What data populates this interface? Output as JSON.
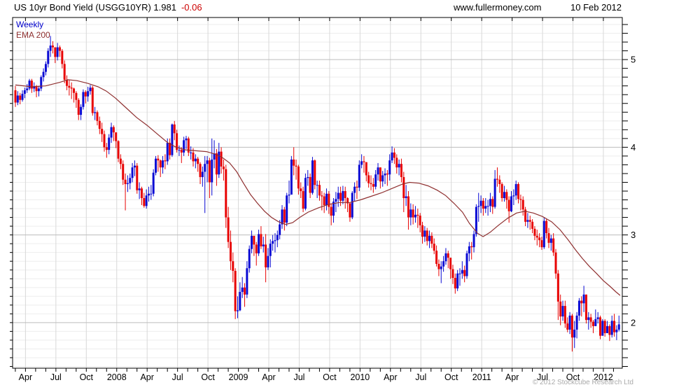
{
  "header": {
    "title": "US 10yr Bond Yield (USGG10YR) 1.981",
    "change": "-0.06",
    "website": "www.fullermoney.com",
    "date": "10 Feb 2012"
  },
  "legend": {
    "timeframe": "Weekly",
    "overlay": "EMA 200"
  },
  "footer": {
    "copyright": "© 2012 Stockcube Research Ltd"
  },
  "colors": {
    "up": "#0b0bd4",
    "down": "#e80404",
    "ema": "#8f3030",
    "change_text": "#cc0000",
    "weekly_text": "#0000cc",
    "grid_minor": "#ededed",
    "grid_major": "#bdbdbd",
    "grid_vert": "#d8d8d8",
    "axis": "#000000",
    "label_text": "#000000",
    "copyright_text": "#aaaaaa"
  },
  "chart_data": {
    "type": "candlestick",
    "title": "US 10yr Bond Yield (USGG10YR)",
    "frequency_label": "Weekly",
    "overlay_label": "EMA 200",
    "last_price": 1.981,
    "change": -0.06,
    "ylim": [
      1.48,
      5.48
    ],
    "y_ticks": [
      5,
      4,
      3,
      2
    ],
    "y_minor_step": 0.1,
    "x_quarter_labels": [
      "Apr",
      "Jul",
      "Oct",
      "2008",
      "Apr",
      "Jul",
      "Oct",
      "2009",
      "Apr",
      "Jul",
      "Oct",
      "2010",
      "Apr",
      "Jul",
      "Oct",
      "2011",
      "Apr",
      "Jul",
      "Oct",
      "2012"
    ],
    "legend_position": "top-left",
    "grid": true,
    "first_open": 4.65,
    "candles_hlc": [
      [
        4.7,
        4.46,
        4.51
      ],
      [
        4.64,
        4.48,
        4.59
      ],
      [
        4.62,
        4.49,
        4.54
      ],
      [
        4.65,
        4.52,
        4.61
      ],
      [
        4.68,
        4.56,
        4.65
      ],
      [
        4.72,
        4.62,
        4.67
      ],
      [
        4.78,
        4.65,
        4.76
      ],
      [
        4.78,
        4.62,
        4.67
      ],
      [
        4.74,
        4.63,
        4.69
      ],
      [
        4.71,
        4.57,
        4.64
      ],
      [
        4.7,
        4.58,
        4.67
      ],
      [
        4.82,
        4.64,
        4.8
      ],
      [
        4.9,
        4.75,
        4.86
      ],
      [
        4.98,
        4.82,
        4.95
      ],
      [
        5.13,
        4.91,
        5.1
      ],
      [
        5.27,
        5.03,
        5.16
      ],
      [
        5.21,
        5.07,
        5.14
      ],
      [
        5.14,
        4.96,
        5.03
      ],
      [
        5.19,
        4.99,
        5.14
      ],
      [
        5.16,
        5.03,
        5.1
      ],
      [
        5.12,
        4.9,
        4.95
      ],
      [
        4.99,
        4.73,
        4.77
      ],
      [
        4.82,
        4.65,
        4.7
      ],
      [
        4.77,
        4.59,
        4.68
      ],
      [
        4.74,
        4.55,
        4.67
      ],
      [
        4.68,
        4.51,
        4.62
      ],
      [
        4.64,
        4.45,
        4.54
      ],
      [
        4.56,
        4.31,
        4.37
      ],
      [
        4.49,
        4.31,
        4.46
      ],
      [
        4.66,
        4.43,
        4.63
      ],
      [
        4.65,
        4.5,
        4.58
      ],
      [
        4.69,
        4.52,
        4.64
      ],
      [
        4.71,
        4.6,
        4.68
      ],
      [
        4.7,
        4.36,
        4.39
      ],
      [
        4.46,
        4.31,
        4.4
      ],
      [
        4.42,
        4.25,
        4.3
      ],
      [
        4.35,
        4.15,
        4.21
      ],
      [
        4.28,
        4.06,
        4.15
      ],
      [
        4.19,
        3.95,
        4.0
      ],
      [
        4.05,
        3.88,
        3.97
      ],
      [
        4.15,
        3.92,
        4.11
      ],
      [
        4.28,
        4.05,
        4.23
      ],
      [
        4.25,
        4.07,
        4.17
      ],
      [
        4.15,
        3.99,
        4.07
      ],
      [
        4.08,
        3.83,
        3.87
      ],
      [
        3.92,
        3.75,
        3.81
      ],
      [
        3.85,
        3.57,
        3.63
      ],
      [
        3.7,
        3.28,
        3.58
      ],
      [
        3.68,
        3.49,
        3.59
      ],
      [
        3.7,
        3.52,
        3.65
      ],
      [
        3.82,
        3.6,
        3.77
      ],
      [
        3.85,
        3.67,
        3.79
      ],
      [
        3.82,
        3.47,
        3.51
      ],
      [
        3.6,
        3.41,
        3.53
      ],
      [
        3.55,
        3.34,
        3.42
      ],
      [
        3.48,
        3.31,
        3.33
      ],
      [
        3.52,
        3.3,
        3.45
      ],
      [
        3.55,
        3.38,
        3.47
      ],
      [
        3.57,
        3.4,
        3.47
      ],
      [
        3.75,
        3.44,
        3.71
      ],
      [
        3.9,
        3.68,
        3.87
      ],
      [
        3.91,
        3.72,
        3.85
      ],
      [
        3.86,
        3.66,
        3.77
      ],
      [
        3.9,
        3.7,
        3.85
      ],
      [
        3.92,
        3.75,
        3.84
      ],
      [
        4.1,
        3.8,
        4.05
      ],
      [
        4.1,
        3.86,
        3.91
      ],
      [
        4.27,
        3.89,
        4.26
      ],
      [
        4.3,
        4.08,
        4.16
      ],
      [
        4.2,
        3.94,
        3.97
      ],
      [
        4.02,
        3.9,
        3.97
      ],
      [
        4.0,
        3.82,
        3.94
      ],
      [
        4.12,
        3.9,
        4.08
      ],
      [
        4.13,
        3.98,
        4.1
      ],
      [
        4.12,
        3.9,
        3.94
      ],
      [
        4.01,
        3.86,
        3.94
      ],
      [
        3.99,
        3.78,
        3.84
      ],
      [
        3.92,
        3.76,
        3.87
      ],
      [
        3.89,
        3.72,
        3.81
      ],
      [
        3.83,
        3.58,
        3.66
      ],
      [
        3.78,
        3.55,
        3.72
      ],
      [
        3.9,
        3.25,
        3.81
      ],
      [
        3.9,
        3.6,
        3.85
      ],
      [
        3.88,
        3.42,
        3.6
      ],
      [
        4.1,
        3.45,
        3.86
      ],
      [
        4.08,
        3.76,
        3.93
      ],
      [
        3.98,
        3.56,
        3.69
      ],
      [
        4.05,
        3.65,
        3.95
      ],
      [
        4.0,
        3.7,
        3.78
      ],
      [
        3.86,
        3.62,
        3.75
      ],
      [
        3.8,
        3.08,
        3.2
      ],
      [
        3.32,
        2.85,
        2.92
      ],
      [
        3.05,
        2.6,
        2.7
      ],
      [
        2.8,
        2.46,
        2.59
      ],
      [
        2.62,
        2.04,
        2.13
      ],
      [
        2.3,
        2.05,
        2.14
      ],
      [
        2.46,
        2.13,
        2.35
      ],
      [
        2.52,
        2.28,
        2.4
      ],
      [
        2.45,
        2.18,
        2.32
      ],
      [
        2.7,
        2.28,
        2.62
      ],
      [
        2.88,
        2.57,
        2.84
      ],
      [
        3.05,
        2.79,
        2.99
      ],
      [
        2.98,
        2.76,
        2.89
      ],
      [
        2.92,
        2.65,
        2.79
      ],
      [
        3.06,
        2.76,
        3.01
      ],
      [
        3.1,
        2.84,
        2.87
      ],
      [
        2.98,
        2.8,
        2.89
      ],
      [
        3.01,
        2.46,
        2.63
      ],
      [
        2.85,
        2.6,
        2.76
      ],
      [
        2.95,
        2.63,
        2.9
      ],
      [
        3.0,
        2.82,
        2.93
      ],
      [
        3.02,
        2.8,
        2.94
      ],
      [
        3.05,
        2.86,
        3.0
      ],
      [
        3.17,
        2.95,
        3.12
      ],
      [
        3.34,
        3.07,
        3.29
      ],
      [
        3.32,
        3.05,
        3.14
      ],
      [
        3.48,
        3.1,
        3.45
      ],
      [
        3.62,
        3.36,
        3.46
      ],
      [
        3.9,
        3.5,
        3.86
      ],
      [
        4.0,
        3.68,
        3.79
      ],
      [
        3.86,
        3.63,
        3.78
      ],
      [
        3.8,
        3.46,
        3.53
      ],
      [
        3.6,
        3.42,
        3.5
      ],
      [
        3.55,
        3.26,
        3.3
      ],
      [
        3.7,
        3.28,
        3.65
      ],
      [
        3.74,
        3.56,
        3.66
      ],
      [
        3.7,
        3.42,
        3.48
      ],
      [
        3.89,
        3.46,
        3.85
      ],
      [
        3.86,
        3.52,
        3.57
      ],
      [
        3.62,
        3.42,
        3.57
      ],
      [
        3.62,
        3.39,
        3.45
      ],
      [
        3.5,
        3.28,
        3.44
      ],
      [
        3.48,
        3.25,
        3.34
      ],
      [
        3.53,
        3.28,
        3.47
      ],
      [
        3.5,
        3.24,
        3.32
      ],
      [
        3.36,
        3.11,
        3.22
      ],
      [
        3.42,
        3.14,
        3.38
      ],
      [
        3.49,
        3.26,
        3.41
      ],
      [
        3.55,
        3.32,
        3.48
      ],
      [
        3.55,
        3.33,
        3.39
      ],
      [
        3.56,
        3.35,
        3.5
      ],
      [
        3.55,
        3.3,
        3.42
      ],
      [
        3.43,
        3.26,
        3.36
      ],
      [
        3.37,
        3.15,
        3.2
      ],
      [
        3.5,
        3.18,
        3.48
      ],
      [
        3.6,
        3.38,
        3.55
      ],
      [
        3.62,
        3.41,
        3.54
      ],
      [
        3.85,
        3.5,
        3.8
      ],
      [
        3.92,
        3.76,
        3.84
      ],
      [
        3.9,
        3.71,
        3.83
      ],
      [
        3.8,
        3.61,
        3.68
      ],
      [
        3.72,
        3.54,
        3.59
      ],
      [
        3.68,
        3.51,
        3.58
      ],
      [
        3.65,
        3.48,
        3.55
      ],
      [
        3.74,
        3.52,
        3.69
      ],
      [
        3.82,
        3.62,
        3.77
      ],
      [
        3.73,
        3.53,
        3.61
      ],
      [
        3.73,
        3.55,
        3.68
      ],
      [
        3.76,
        3.58,
        3.7
      ],
      [
        3.74,
        3.56,
        3.69
      ],
      [
        3.92,
        3.62,
        3.85
      ],
      [
        4.01,
        3.82,
        3.94
      ],
      [
        3.99,
        3.81,
        3.88
      ],
      [
        3.92,
        3.7,
        3.77
      ],
      [
        3.86,
        3.68,
        3.81
      ],
      [
        3.87,
        3.6,
        3.66
      ],
      [
        3.72,
        3.26,
        3.42
      ],
      [
        3.57,
        3.33,
        3.44
      ],
      [
        3.5,
        3.06,
        3.2
      ],
      [
        3.36,
        3.11,
        3.29
      ],
      [
        3.35,
        3.12,
        3.2
      ],
      [
        3.33,
        3.14,
        3.23
      ],
      [
        3.3,
        3.08,
        3.22
      ],
      [
        3.25,
        3.03,
        3.11
      ],
      [
        3.15,
        2.9,
        2.98
      ],
      [
        3.1,
        2.92,
        3.05
      ],
      [
        3.08,
        2.88,
        2.93
      ],
      [
        3.05,
        2.85,
        2.99
      ],
      [
        3.03,
        2.85,
        2.9
      ],
      [
        2.96,
        2.78,
        2.82
      ],
      [
        2.88,
        2.64,
        2.67
      ],
      [
        2.72,
        2.53,
        2.61
      ],
      [
        2.7,
        2.45,
        2.64
      ],
      [
        2.76,
        2.58,
        2.7
      ],
      [
        2.85,
        2.66,
        2.79
      ],
      [
        2.82,
        2.62,
        2.74
      ],
      [
        2.7,
        2.5,
        2.61
      ],
      [
        2.66,
        2.44,
        2.51
      ],
      [
        2.56,
        2.33,
        2.39
      ],
      [
        2.6,
        2.36,
        2.56
      ],
      [
        2.62,
        2.42,
        2.56
      ],
      [
        2.7,
        2.5,
        2.6
      ],
      [
        2.65,
        2.46,
        2.53
      ],
      [
        2.82,
        2.5,
        2.79
      ],
      [
        2.92,
        2.7,
        2.87
      ],
      [
        2.92,
        2.72,
        2.86
      ],
      [
        3.05,
        2.8,
        3.01
      ],
      [
        3.35,
        2.98,
        3.32
      ],
      [
        3.48,
        3.15,
        3.33
      ],
      [
        3.45,
        3.25,
        3.39
      ],
      [
        3.42,
        3.22,
        3.3
      ],
      [
        3.42,
        3.25,
        3.33
      ],
      [
        3.4,
        3.22,
        3.33
      ],
      [
        3.48,
        3.26,
        3.41
      ],
      [
        3.44,
        3.24,
        3.32
      ],
      [
        3.74,
        3.3,
        3.64
      ],
      [
        3.77,
        3.55,
        3.63
      ],
      [
        3.68,
        3.48,
        3.58
      ],
      [
        3.6,
        3.38,
        3.42
      ],
      [
        3.56,
        3.38,
        3.49
      ],
      [
        3.52,
        3.3,
        3.4
      ],
      [
        3.44,
        3.14,
        3.27
      ],
      [
        3.5,
        3.26,
        3.44
      ],
      [
        3.52,
        3.34,
        3.45
      ],
      [
        3.62,
        3.4,
        3.58
      ],
      [
        3.6,
        3.36,
        3.41
      ],
      [
        3.46,
        3.28,
        3.4
      ],
      [
        3.44,
        3.22,
        3.29
      ],
      [
        3.32,
        3.1,
        3.15
      ],
      [
        3.25,
        3.08,
        3.17
      ],
      [
        3.22,
        3.06,
        3.15
      ],
      [
        3.18,
        3.02,
        3.07
      ],
      [
        3.1,
        2.94,
        2.99
      ],
      [
        3.06,
        2.88,
        2.97
      ],
      [
        3.02,
        2.86,
        2.94
      ],
      [
        2.98,
        2.83,
        2.86
      ],
      [
        3.2,
        2.84,
        3.16
      ],
      [
        3.18,
        2.96,
        3.02
      ],
      [
        3.08,
        2.85,
        2.91
      ],
      [
        3.0,
        2.82,
        2.96
      ],
      [
        3.02,
        2.76,
        2.8
      ],
      [
        2.84,
        2.5,
        2.56
      ],
      [
        2.6,
        2.03,
        2.24
      ],
      [
        2.32,
        1.97,
        2.07
      ],
      [
        2.25,
        2.02,
        2.19
      ],
      [
        2.25,
        1.94,
        1.99
      ],
      [
        2.06,
        1.89,
        1.92
      ],
      [
        2.12,
        1.87,
        2.08
      ],
      [
        2.1,
        1.67,
        1.83
      ],
      [
        2.02,
        1.71,
        1.92
      ],
      [
        2.12,
        1.82,
        2.08
      ],
      [
        2.28,
        2.02,
        2.25
      ],
      [
        2.3,
        2.07,
        2.22
      ],
      [
        2.42,
        2.12,
        2.32
      ],
      [
        2.3,
        1.99,
        2.03
      ],
      [
        2.12,
        1.92,
        2.06
      ],
      [
        2.1,
        1.94,
        2.01
      ],
      [
        2.03,
        1.88,
        1.96
      ],
      [
        2.15,
        1.97,
        2.04
      ],
      [
        2.12,
        1.99,
        2.06
      ],
      [
        2.08,
        1.81,
        1.85
      ],
      [
        2.04,
        1.85,
        2.02
      ],
      [
        2.04,
        1.84,
        1.88
      ],
      [
        2.02,
        1.88,
        1.96
      ],
      [
        1.98,
        1.79,
        1.86
      ],
      [
        2.08,
        1.83,
        2.02
      ],
      [
        2.1,
        1.84,
        1.89
      ],
      [
        1.97,
        1.8,
        1.92
      ],
      [
        2.08,
        1.9,
        1.98
      ]
    ],
    "ema_points": [
      [
        0,
        4.71
      ],
      [
        6.9,
        4.69
      ],
      [
        12.9,
        4.7
      ],
      [
        18.9,
        4.74
      ],
      [
        22.4,
        4.77
      ],
      [
        26.3,
        4.76
      ],
      [
        30.8,
        4.73
      ],
      [
        35.3,
        4.69
      ],
      [
        38.9,
        4.64
      ],
      [
        42.8,
        4.56
      ],
      [
        47.3,
        4.45
      ],
      [
        51.8,
        4.34
      ],
      [
        56.3,
        4.25
      ],
      [
        60.7,
        4.15
      ],
      [
        65.2,
        4.05
      ],
      [
        68.8,
        4.0
      ],
      [
        72.7,
        3.97
      ],
      [
        77.2,
        3.96
      ],
      [
        81.7,
        3.95
      ],
      [
        85.6,
        3.92
      ],
      [
        88.6,
        3.88
      ],
      [
        91.6,
        3.82
      ],
      [
        94.6,
        3.72
      ],
      [
        97.5,
        3.59
      ],
      [
        100.5,
        3.46
      ],
      [
        103.5,
        3.36
      ],
      [
        106.5,
        3.27
      ],
      [
        109.5,
        3.2
      ],
      [
        112.5,
        3.15
      ],
      [
        115.5,
        3.12
      ],
      [
        118.5,
        3.14
      ],
      [
        121.5,
        3.2
      ],
      [
        125.1,
        3.26
      ],
      [
        129.6,
        3.31
      ],
      [
        134.1,
        3.35
      ],
      [
        138.5,
        3.37
      ],
      [
        143.0,
        3.37
      ],
      [
        147.5,
        3.4
      ],
      [
        152.0,
        3.44
      ],
      [
        156.5,
        3.48
      ],
      [
        161.0,
        3.53
      ],
      [
        165.5,
        3.58
      ],
      [
        168.5,
        3.6
      ],
      [
        172.5,
        3.59
      ],
      [
        176.4,
        3.56
      ],
      [
        180.3,
        3.51
      ],
      [
        183.9,
        3.45
      ],
      [
        187.5,
        3.36
      ],
      [
        191.1,
        3.26
      ],
      [
        194.1,
        3.13
      ],
      [
        197.5,
        3.02
      ],
      [
        199.9,
        2.98
      ],
      [
        202.9,
        3.03
      ],
      [
        206.5,
        3.11
      ],
      [
        210.4,
        3.19
      ],
      [
        214.2,
        3.25
      ],
      [
        217.8,
        3.27
      ],
      [
        221.4,
        3.25
      ],
      [
        225.3,
        3.21
      ],
      [
        229.2,
        3.15
      ],
      [
        232.8,
        3.06
      ],
      [
        236.4,
        2.94
      ],
      [
        239.4,
        2.83
      ],
      [
        242.4,
        2.73
      ],
      [
        245.4,
        2.64
      ],
      [
        248.4,
        2.56
      ],
      [
        251.3,
        2.48
      ],
      [
        254.3,
        2.41
      ],
      [
        256.7,
        2.35
      ],
      [
        258.5,
        2.31
      ]
    ]
  }
}
